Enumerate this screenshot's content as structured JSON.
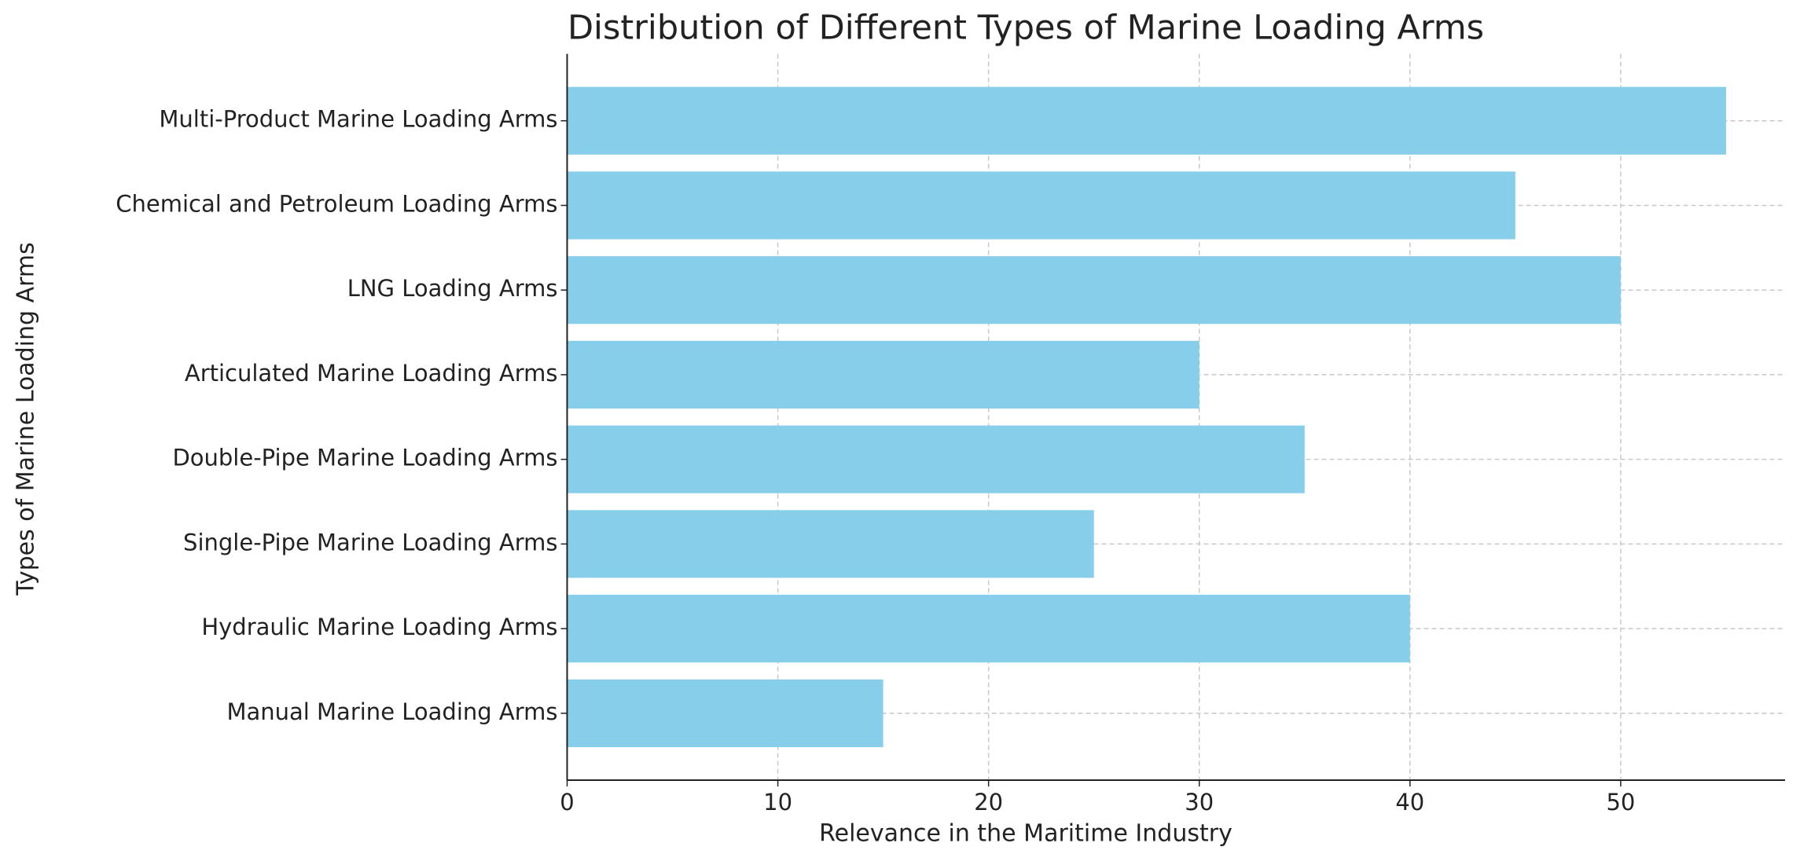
{
  "chart_data": {
    "type": "bar",
    "orientation": "horizontal",
    "title": "Distribution of Different Types of Marine Loading Arms",
    "x_label": "Relevance in the Maritime Industry",
    "y_label": "Types of Marine Loading Arms",
    "categories": [
      "Manual Marine Loading Arms",
      "Hydraulic Marine Loading Arms",
      "Single-Pipe Marine Loading Arms",
      "Double-Pipe Marine Loading Arms",
      "Articulated Marine Loading Arms",
      "LNG Loading Arms",
      "Chemical and Petroleum Loading Arms",
      "Multi-Product Marine Loading Arms"
    ],
    "values": [
      15,
      40,
      25,
      35,
      30,
      50,
      45,
      55
    ],
    "color": "#87ceeb",
    "xlim": [
      0,
      57.8
    ],
    "xticks": [
      0,
      10,
      20,
      30,
      40,
      50
    ],
    "grid": true
  }
}
